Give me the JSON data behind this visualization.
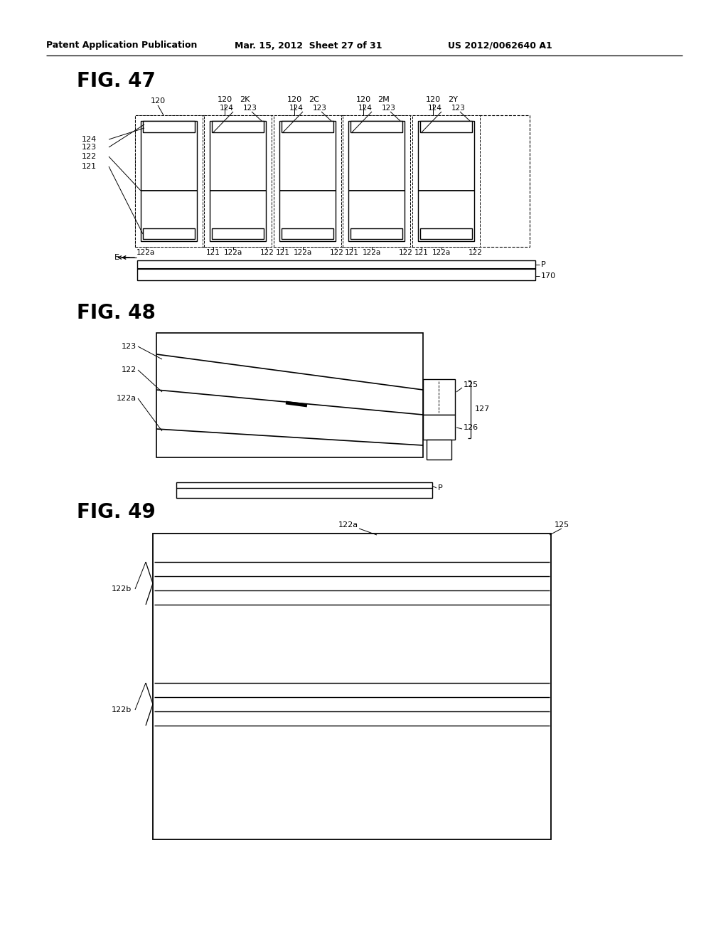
{
  "bg": "#ffffff",
  "lc": "#000000",
  "header_left": "Patent Application Publication",
  "header_mid": "Mar. 15, 2012  Sheet 27 of 31",
  "header_right": "US 2012/0062640 A1",
  "fig47_title": "FIG. 47",
  "fig48_title": "FIG. 48",
  "fig49_title": "FIG. 49",
  "fig47_top_labels": [
    "120",
    "2K",
    "120",
    "2C",
    "120",
    "2M",
    "120",
    "2Y"
  ],
  "fig47_sub_labels": [
    "124",
    "123"
  ],
  "fig47_left_labels": [
    "124",
    "123",
    "122",
    "121"
  ],
  "fig47_bot_labels": [
    "122a",
    "121",
    "122a",
    "122",
    "121",
    "122a",
    "122",
    "121",
    "122a",
    "122"
  ],
  "fig48_labels": [
    "123",
    "122",
    "122a",
    "125",
    "126",
    "127"
  ],
  "fig49_labels": [
    "122a",
    "125",
    "122b",
    "122b"
  ]
}
